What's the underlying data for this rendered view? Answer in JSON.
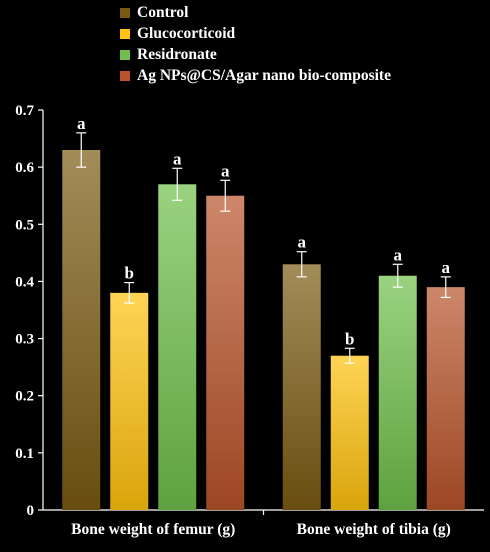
{
  "chart_data": {
    "type": "bar",
    "categories": [
      "Bone weight of femur (g)",
      "Bone weight of tibia (g)"
    ],
    "ylim": [
      0,
      0.7
    ],
    "yticks": [
      "0",
      "0.1",
      "0.2",
      "0.3",
      "0.4",
      "0.5",
      "0.6",
      "0.7"
    ],
    "legend_position": "top",
    "grid": false,
    "series": [
      {
        "name": "Control",
        "color": "#7a5a12",
        "values": [
          0.63,
          0.43
        ],
        "errors": [
          0.03,
          0.022
        ],
        "labels": [
          "a",
          "a"
        ]
      },
      {
        "name": "Glucocorticoid",
        "color": "#ffc20e",
        "values": [
          0.38,
          0.27
        ],
        "errors": [
          0.018,
          0.013
        ],
        "labels": [
          "b",
          "b"
        ]
      },
      {
        "name": "Residronate",
        "color": "#6fbf4a",
        "values": [
          0.57,
          0.41
        ],
        "errors": [
          0.028,
          0.02
        ],
        "labels": [
          "a",
          "a"
        ]
      },
      {
        "name": "Ag NPs@CS/Agar nano bio-composite",
        "color": "#b8532a",
        "values": [
          0.55,
          0.39
        ],
        "errors": [
          0.027,
          0.018
        ],
        "labels": [
          "a",
          "a"
        ]
      }
    ]
  }
}
